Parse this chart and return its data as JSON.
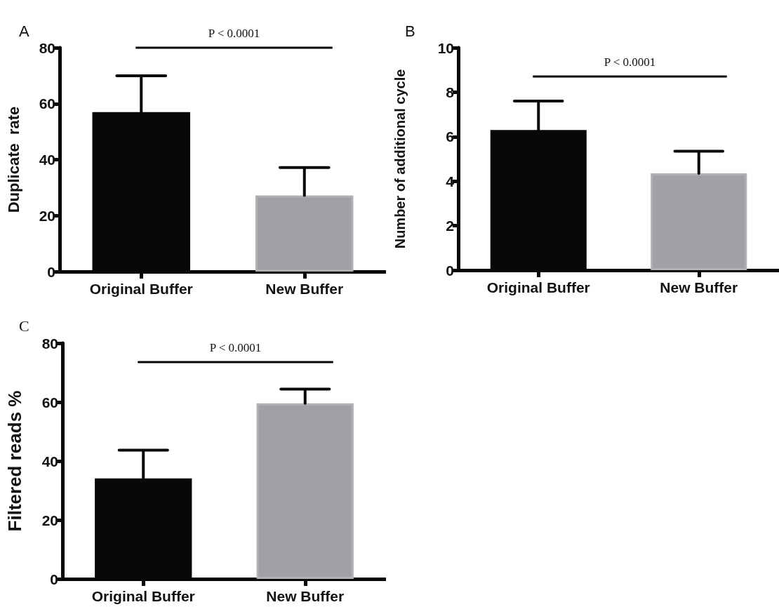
{
  "chart_data": [
    {
      "type": "bar",
      "title": "A",
      "categories": [
        "Original Buffer",
        "New Buffer"
      ],
      "colors": [
        "#060809",
        "#a0a1a4"
      ],
      "values": [
        57,
        27.2
      ],
      "errors": [
        [
          57,
          70
        ],
        [
          27.2,
          37.2
        ]
      ],
      "ylabel": "Duplicate  rate",
      "ylim": [
        0,
        80
      ],
      "yticks": [
        0,
        20,
        40,
        60,
        80
      ],
      "annotations": [
        "P < 0.0001"
      ]
    },
    {
      "type": "bar",
      "title": "B",
      "categories": [
        "Original Buffer",
        "New Buffer"
      ],
      "colors": [
        "#060809",
        "#a0a1a4"
      ],
      "values": [
        6.3,
        4.35
      ],
      "errors": [
        [
          6.3,
          7.6
        ],
        [
          4.35,
          5.35
        ]
      ],
      "ylabel": "Number of additional cycle",
      "ylim": [
        0,
        10
      ],
      "yticks": [
        0,
        2,
        4,
        6,
        8,
        10
      ],
      "annotations": [
        "P < 0.0001"
      ]
    },
    {
      "type": "bar",
      "title": "C",
      "categories": [
        "Original Buffer",
        "New Buffer"
      ],
      "colors": [
        "#060809",
        "#a0a1a4"
      ],
      "values": [
        34.1,
        59.6
      ],
      "errors": [
        [
          34.1,
          43.7
        ],
        [
          59.6,
          64.4
        ]
      ],
      "ylabel": "Filtered reads %",
      "ylim": [
        0,
        80
      ],
      "yticks": [
        0,
        20,
        40,
        60,
        80
      ],
      "annotations": [
        "P < 0.0001"
      ]
    }
  ]
}
